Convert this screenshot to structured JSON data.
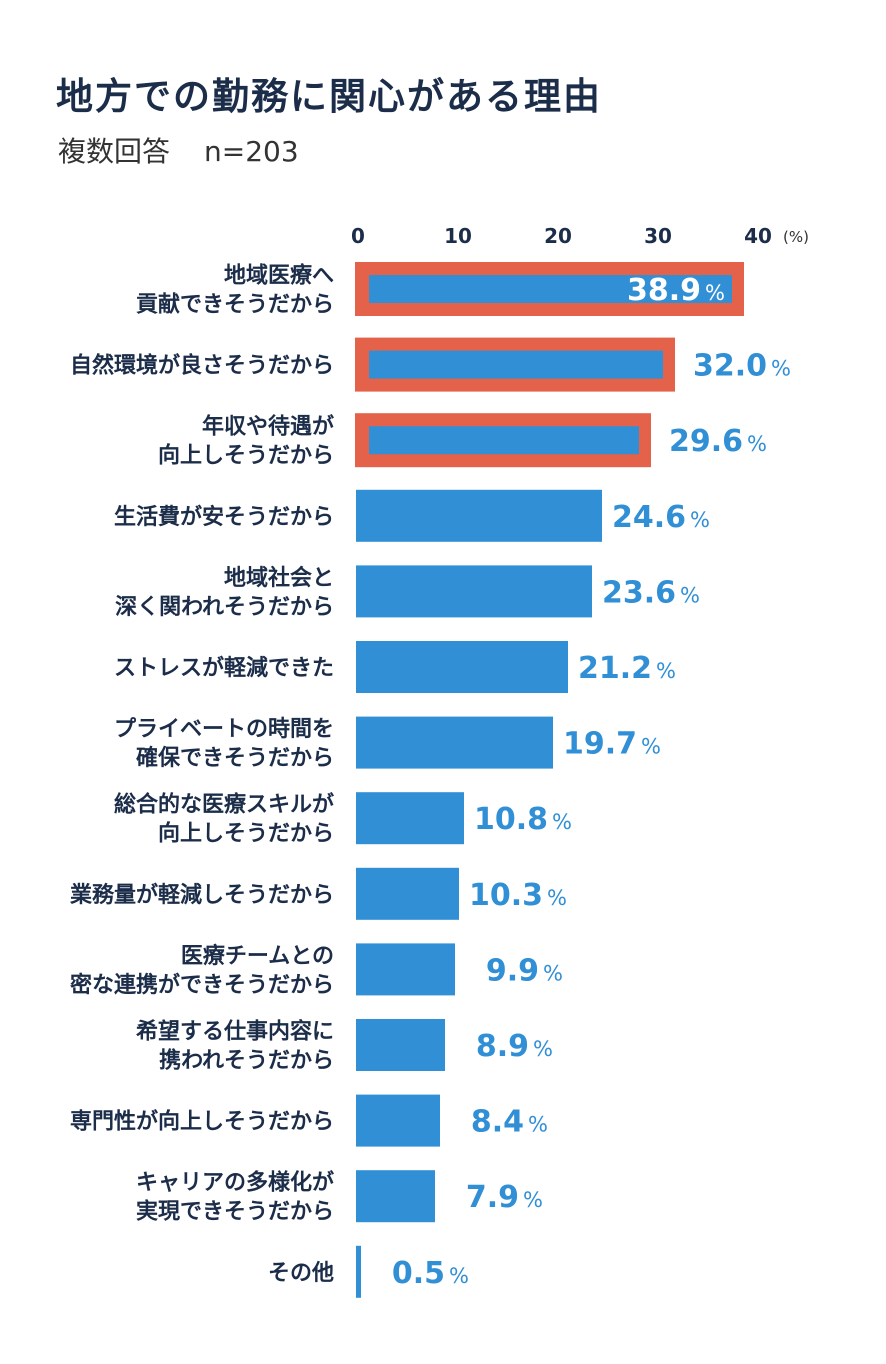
{
  "header": {
    "title": "地方での勤務に関心がある理由",
    "subtitle": "複数回答",
    "sample": "n=203"
  },
  "colors": {
    "bar": "#318fd6",
    "highlight_border": "#e5624a",
    "label_text": "#1c2d4a",
    "value_text": "#318fd6"
  },
  "chart_data": {
    "type": "bar",
    "orientation": "horizontal",
    "x_ticks": [
      "0",
      "10",
      "20",
      "30",
      "40"
    ],
    "x_unit": "(%)",
    "xlim": [
      0,
      40
    ],
    "value_suffix": "%",
    "grid": false,
    "categories": [
      [
        "地域医療へ",
        "貢献できそうだから"
      ],
      [
        "自然環境が良さそうだから"
      ],
      [
        "年収や待遇が",
        "向上しそうだから"
      ],
      [
        "生活費が安そうだから"
      ],
      [
        "地域社会と",
        "深く関われそうだから"
      ],
      [
        "ストレスが軽減できた"
      ],
      [
        "プライベートの時間を",
        "確保できそうだから"
      ],
      [
        "総合的な医療スキルが",
        "向上しそうだから"
      ],
      [
        "業務量が軽減しそうだから"
      ],
      [
        "医療チームとの",
        "密な連携ができそうだから"
      ],
      [
        "希望する仕事内容に",
        "携われそうだから"
      ],
      [
        "専門性が向上しそうだから"
      ],
      [
        "キャリアの多様化が",
        "実現できそうだから"
      ],
      [
        "その他"
      ]
    ],
    "values": [
      38.9,
      32.0,
      29.6,
      24.6,
      23.6,
      21.2,
      19.7,
      10.8,
      10.3,
      9.9,
      8.9,
      8.4,
      7.9,
      0.5
    ],
    "value_labels": [
      "38.9",
      "32.0",
      "29.6",
      "24.6",
      "23.6",
      "21.2",
      "19.7",
      "10.8",
      "10.3",
      "9.9",
      "8.9",
      "8.4",
      "7.9",
      "0.5"
    ],
    "highlighted": [
      true,
      true,
      true,
      false,
      false,
      false,
      false,
      false,
      false,
      false,
      false,
      false,
      false,
      false
    ]
  }
}
